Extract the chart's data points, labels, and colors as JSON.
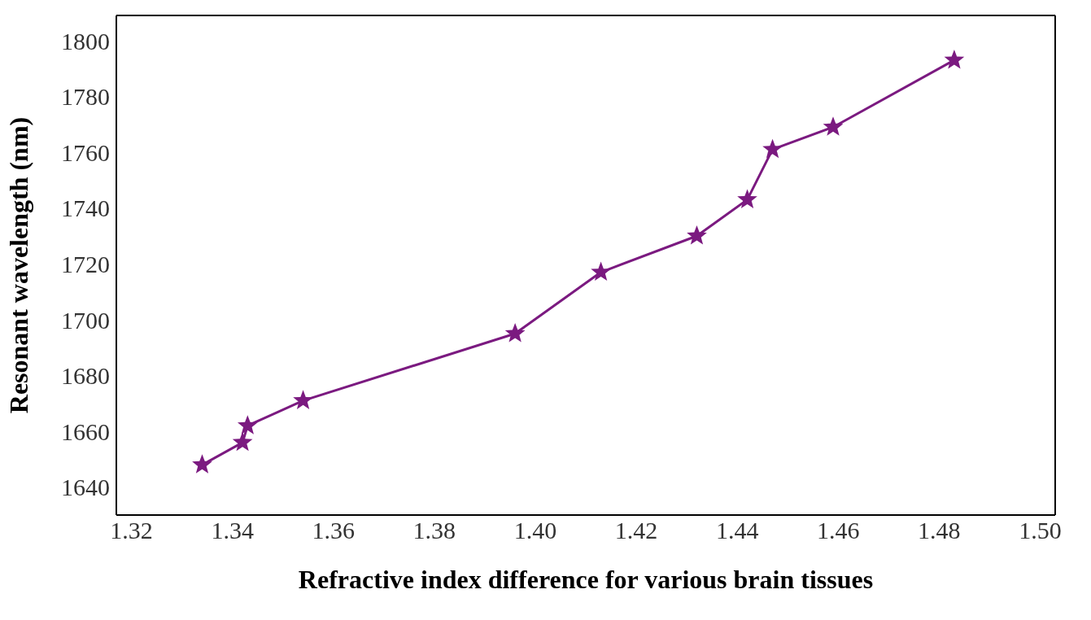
{
  "chart_data": {
    "type": "line",
    "xlabel": "Refractive index difference for various brain tissues",
    "ylabel": "Resonant wavelength (nm)",
    "x": [
      1.334,
      1.342,
      1.343,
      1.354,
      1.396,
      1.413,
      1.432,
      1.442,
      1.447,
      1.459,
      1.483
    ],
    "series": [
      {
        "color": "#7b1a80",
        "values": [
          1648,
          1656,
          1662,
          1671,
          1695,
          1717,
          1730,
          1743,
          1761,
          1769,
          1793
        ]
      }
    ],
    "xlim": [
      1.317,
      1.503
    ],
    "xticks": [
      {
        "value": 1.32,
        "label": "1.32"
      },
      {
        "value": 1.34,
        "label": "1.34"
      },
      {
        "value": 1.36,
        "label": "1.36"
      },
      {
        "value": 1.38,
        "label": "1.38"
      },
      {
        "value": 1.4,
        "label": "1.40"
      },
      {
        "value": 1.42,
        "label": "1.42"
      },
      {
        "value": 1.44,
        "label": "1.44"
      },
      {
        "value": 1.46,
        "label": "1.46"
      },
      {
        "value": 1.48,
        "label": "1.48"
      },
      {
        "value": 1.5,
        "label": "1.50"
      }
    ],
    "ylim": [
      1630,
      1809
    ],
    "yticks": [
      1640,
      1660,
      1680,
      1700,
      1720,
      1740,
      1760,
      1780,
      1800
    ],
    "grid": false,
    "legend": false,
    "marker": "star",
    "line_style": "solid"
  }
}
